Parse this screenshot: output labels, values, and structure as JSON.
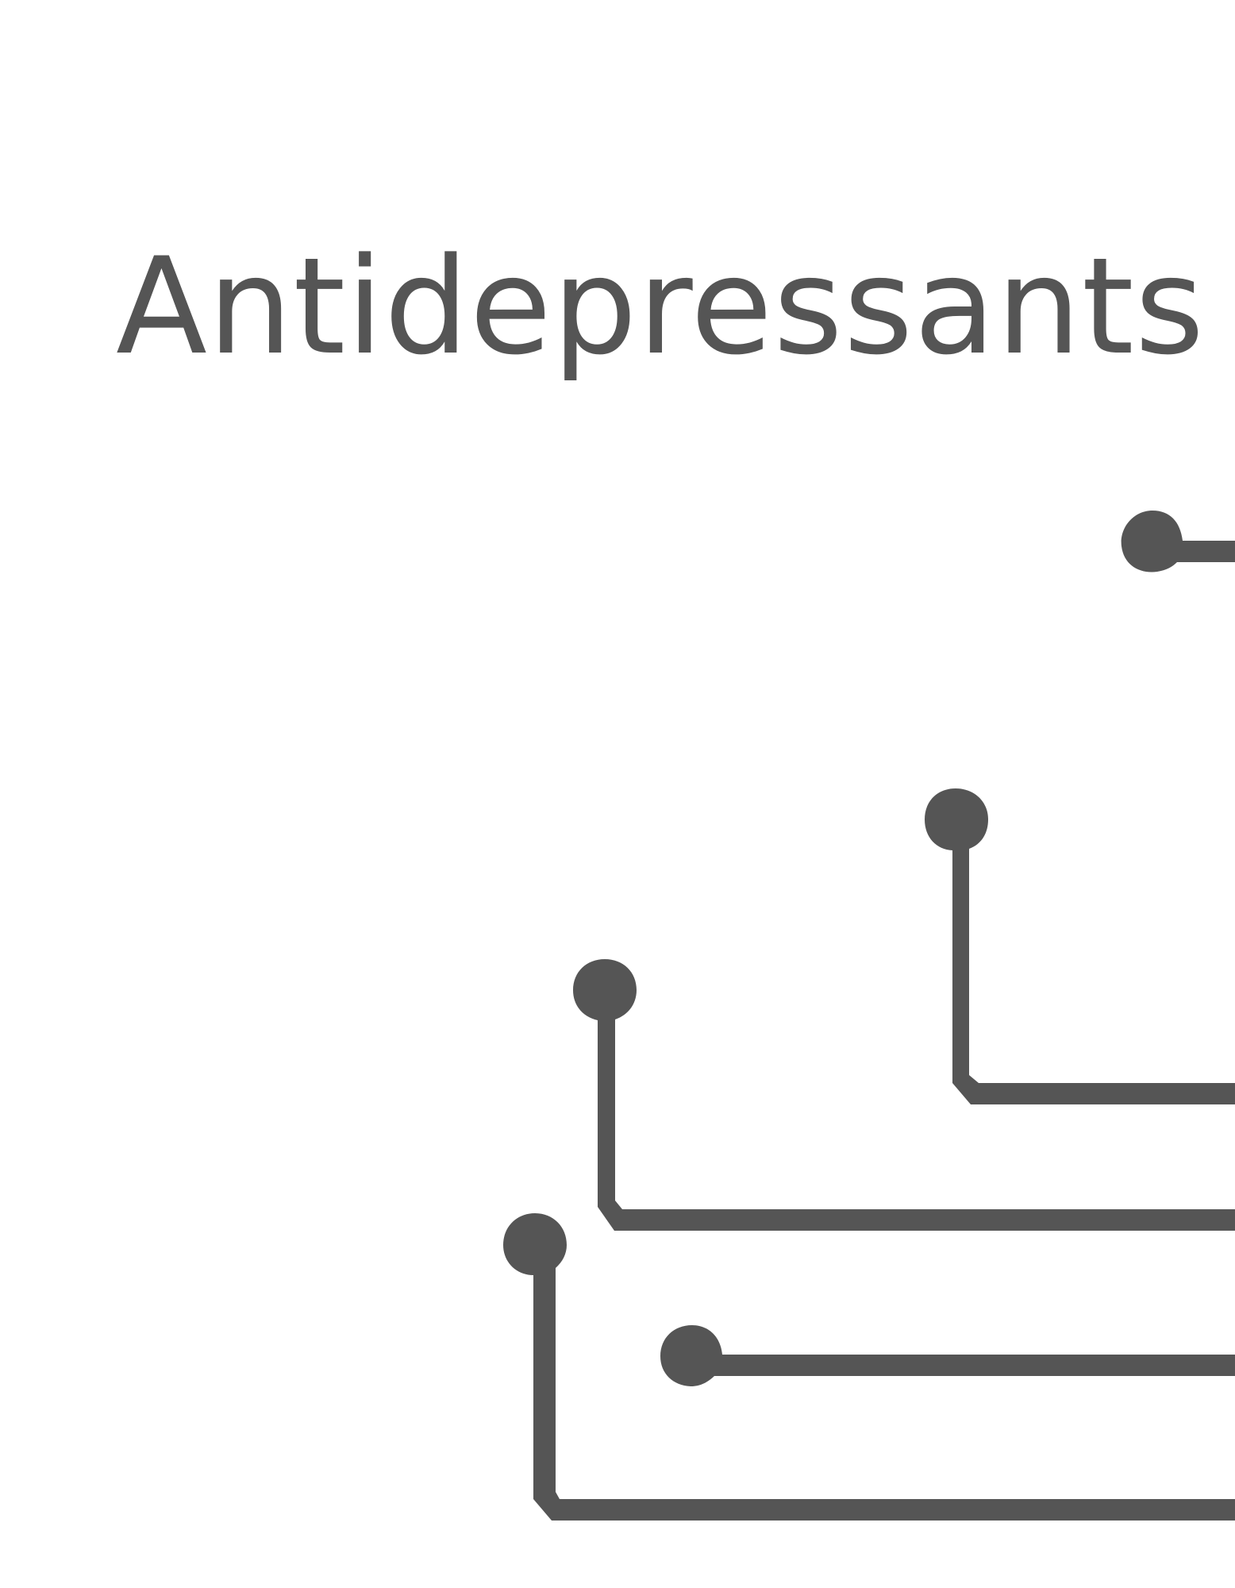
{
  "title": "Antidepressants",
  "colors": {
    "ink": "#555555",
    "background": "#ffffff"
  }
}
